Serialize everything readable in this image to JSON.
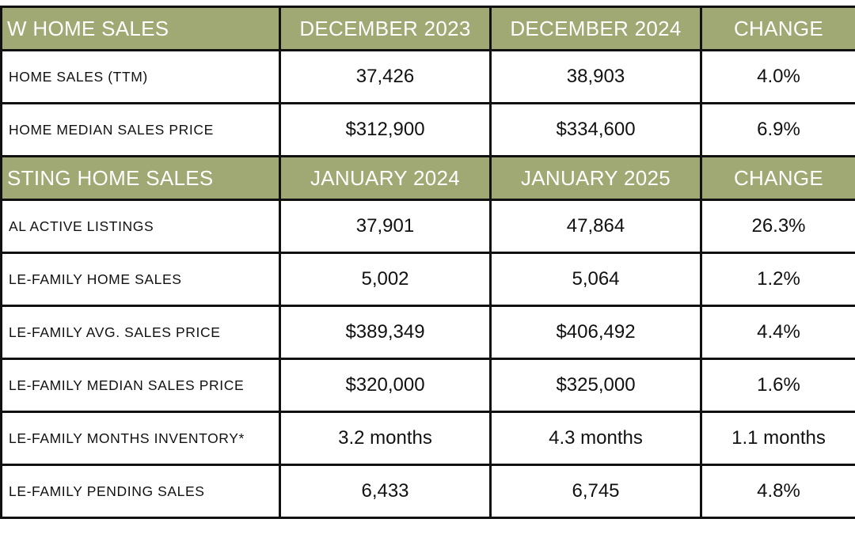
{
  "sections": [
    {
      "header": [
        "W HOME SALES",
        "DECEMBER 2023",
        "DECEMBER 2024",
        "CHANGE"
      ],
      "rows": [
        [
          "HOME SALES (TTM)",
          "37,426",
          "38,903",
          "4.0%"
        ],
        [
          "HOME MEDIAN SALES PRICE",
          "$312,900",
          "$334,600",
          "6.9%"
        ]
      ]
    },
    {
      "header": [
        "STING HOME SALES",
        "JANUARY 2024",
        "JANUARY 2025",
        "CHANGE"
      ],
      "rows": [
        [
          "AL ACTIVE LISTINGS",
          "37,901",
          "47,864",
          "26.3%"
        ],
        [
          "LE-FAMILY HOME SALES",
          "5,002",
          "5,064",
          "1.2%"
        ],
        [
          "LE-FAMILY AVG. SALES PRICE",
          "$389,349",
          "$406,492",
          "4.4%"
        ],
        [
          "LE-FAMILY MEDIAN SALES PRICE",
          "$320,000",
          "$325,000",
          "1.6%"
        ],
        [
          "LE-FAMILY MONTHS INVENTORY*",
          "3.2 months",
          "4.3 months",
          "1.1 months"
        ],
        [
          "LE-FAMILY PENDING SALES",
          "6,433",
          "6,745",
          "4.8%"
        ]
      ]
    }
  ],
  "colors": {
    "header_bg": "#a0a873",
    "header_text": "#ffffff"
  }
}
